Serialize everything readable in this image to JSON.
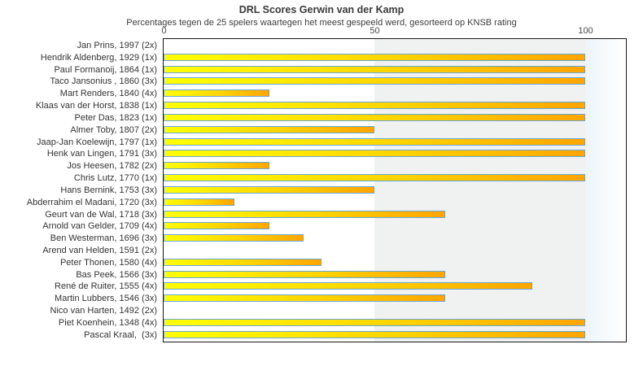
{
  "chart_data": {
    "type": "bar",
    "orientation": "horizontal",
    "title": "DRL Scores Gerwin van der Kamp",
    "subtitle": "Percentages tegen de 25 spelers waartegen het meest gespeeld werd, gesorteerd op KNSB rating",
    "xlabel": "",
    "ylabel": "",
    "x_ticks": [
      0,
      50,
      100
    ],
    "xlim": [
      0,
      110
    ],
    "grid": "off",
    "legend": "none",
    "background_bands": [
      {
        "from": 0,
        "to": 50,
        "color": "#ffffff"
      },
      {
        "from": 50,
        "to": 100,
        "color": "#f0f1f1"
      },
      {
        "from": 100,
        "to": 110,
        "color": "gradient #edf5fa to #ffffff"
      }
    ],
    "categories": [
      "Jan Prins, 1997 (2x)",
      "Hendrik Aldenberg, 1929 (1x)",
      "Paul Formanoij, 1864 (1x)",
      "Taco Jansonius , 1860 (3x)",
      "Mart Renders, 1840 (4x)",
      "Klaas van der Horst, 1838 (1x)",
      "Peter Das, 1823 (1x)",
      "Almer Toby, 1807 (2x)",
      "Jaap-Jan Koelewijn, 1797 (1x)",
      "Henk van Lingen, 1791 (3x)",
      "Jos Heesen, 1782 (2x)",
      "Chris Lutz, 1770 (1x)",
      "Hans Bernink, 1753 (3x)",
      "Abderrahim el Madani, 1720 (3x)",
      "Geurt van de Wal, 1718 (3x)",
      "Arnold van Gelder, 1709 (4x)",
      "Ben Westerman, 1696 (3x)",
      "Arend van Helden, 1591 (2x)",
      "Peter Thonen, 1580 (4x)",
      "Bas Peek, 1566 (3x)",
      "René de Ruiter, 1555 (4x)",
      "Martin Lubbers, 1546 (3x)",
      "Nico van Harten, 1492 (2x)",
      "Piet Koenhein, 1348 (4x)",
      "Pascal Kraal,  (3x)"
    ],
    "values": [
      0,
      100,
      100,
      100,
      25,
      100,
      100,
      50,
      100,
      100,
      25,
      100,
      50,
      16.7,
      66.7,
      25,
      33.3,
      0,
      37.5,
      66.7,
      87.5,
      66.7,
      0,
      100,
      100
    ],
    "colors": {
      "bar_gradient_start": "#ffff00",
      "bar_gradient_end": "#ffa500",
      "bar_border": "#6aa7d8",
      "band_50_100": "#f0f1f1",
      "band_over_100_start": "#edf5fa",
      "plot_border": "#161616",
      "text": "#333333"
    }
  }
}
